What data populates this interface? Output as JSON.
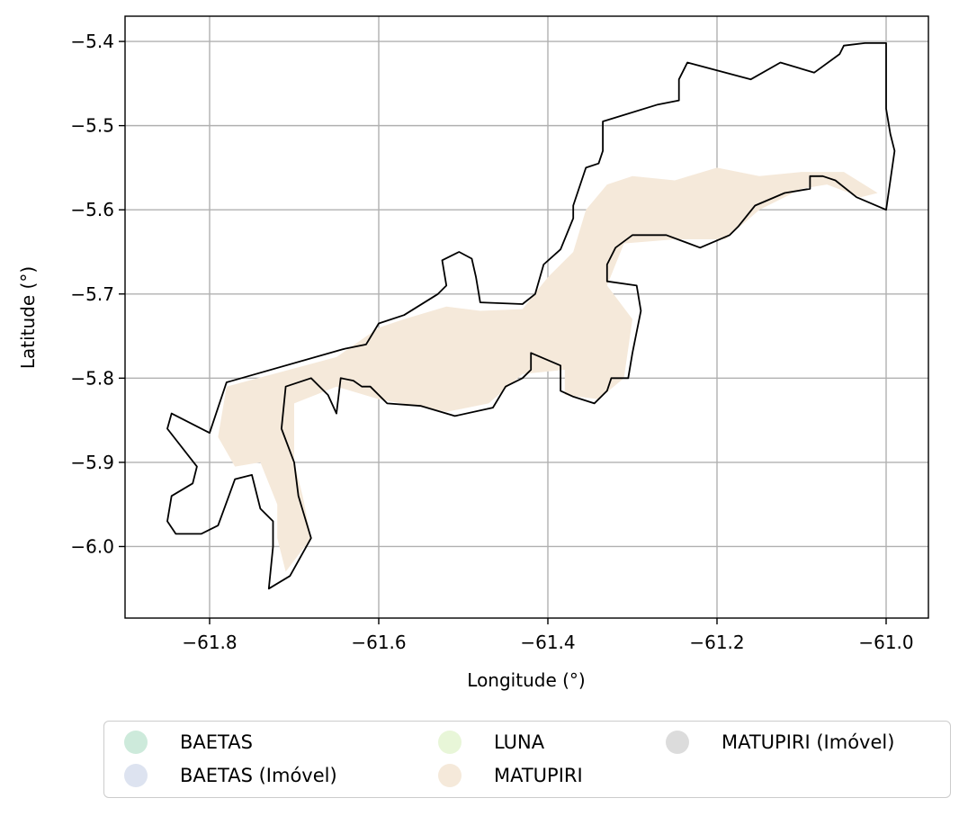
{
  "chart_data": {
    "type": "map",
    "xlabel": "Longitude (°)",
    "ylabel": "Latitude (°)",
    "xlim": [
      -61.9,
      -60.95
    ],
    "ylim": [
      -6.085,
      -5.37
    ],
    "xticks": [
      -61.8,
      -61.6,
      -61.4,
      -61.2,
      -61.0
    ],
    "yticks": [
      -5.4,
      -5.5,
      -5.6,
      -5.7,
      -5.8,
      -5.9,
      -6.0
    ],
    "xtick_labels": [
      "−61.8",
      "−61.6",
      "−61.4",
      "−61.2",
      "−61.0"
    ],
    "ytick_labels": [
      "−5.4",
      "−5.5",
      "−5.6",
      "−5.7",
      "−5.8",
      "−5.9",
      "−6.0"
    ],
    "grid": true,
    "legend_placement": "bottom-center",
    "legend": [
      {
        "label": "BAETAS",
        "color": "#cdeadb"
      },
      {
        "label": "BAETAS (Imóvel)",
        "color": "#dde3f0"
      },
      {
        "label": "LUNA",
        "color": "#e8f6d8"
      },
      {
        "label": "MATUPIRI",
        "color": "#f5e9da"
      },
      {
        "label": "MATUPIRI (Imóvel)",
        "color": "#dcdcdc"
      }
    ],
    "boundary_outline": [
      [
        -61.845,
        -5.842
      ],
      [
        -61.8,
        -5.865
      ],
      [
        -61.78,
        -5.805
      ],
      [
        -61.64,
        -5.765
      ],
      [
        -61.615,
        -5.76
      ],
      [
        -61.6,
        -5.735
      ],
      [
        -61.57,
        -5.725
      ],
      [
        -61.53,
        -5.7
      ],
      [
        -61.52,
        -5.69
      ],
      [
        -61.525,
        -5.66
      ],
      [
        -61.505,
        -5.65
      ],
      [
        -61.49,
        -5.658
      ],
      [
        -61.485,
        -5.68
      ],
      [
        -61.48,
        -5.71
      ],
      [
        -61.43,
        -5.712
      ],
      [
        -61.415,
        -5.7
      ],
      [
        -61.405,
        -5.665
      ],
      [
        -61.385,
        -5.647
      ],
      [
        -61.37,
        -5.61
      ],
      [
        -61.37,
        -5.595
      ],
      [
        -61.355,
        -5.55
      ],
      [
        -61.34,
        -5.545
      ],
      [
        -61.335,
        -5.53
      ],
      [
        -61.335,
        -5.495
      ],
      [
        -61.27,
        -5.475
      ],
      [
        -61.245,
        -5.47
      ],
      [
        -61.245,
        -5.445
      ],
      [
        -61.235,
        -5.425
      ],
      [
        -61.16,
        -5.445
      ],
      [
        -61.125,
        -5.425
      ],
      [
        -61.085,
        -5.437
      ],
      [
        -61.055,
        -5.415
      ],
      [
        -61.05,
        -5.405
      ],
      [
        -61.025,
        -5.402
      ],
      [
        -61.0,
        -5.402
      ],
      [
        -61.0,
        -5.48
      ],
      [
        -60.995,
        -5.51
      ],
      [
        -60.99,
        -5.53
      ],
      [
        -61.0,
        -5.6
      ],
      [
        -61.035,
        -5.585
      ],
      [
        -61.06,
        -5.565
      ],
      [
        -61.075,
        -5.56
      ],
      [
        -61.09,
        -5.56
      ],
      [
        -61.09,
        -5.575
      ],
      [
        -61.12,
        -5.58
      ],
      [
        -61.155,
        -5.595
      ],
      [
        -61.175,
        -5.62
      ],
      [
        -61.185,
        -5.63
      ],
      [
        -61.22,
        -5.645
      ],
      [
        -61.26,
        -5.63
      ],
      [
        -61.3,
        -5.63
      ],
      [
        -61.32,
        -5.645
      ],
      [
        -61.33,
        -5.665
      ],
      [
        -61.33,
        -5.685
      ],
      [
        -61.295,
        -5.69
      ],
      [
        -61.29,
        -5.72
      ],
      [
        -61.3,
        -5.77
      ],
      [
        -61.305,
        -5.8
      ],
      [
        -61.325,
        -5.8
      ],
      [
        -61.33,
        -5.815
      ],
      [
        -61.345,
        -5.83
      ],
      [
        -61.37,
        -5.822
      ],
      [
        -61.385,
        -5.815
      ],
      [
        -61.385,
        -5.785
      ],
      [
        -61.42,
        -5.77
      ],
      [
        -61.42,
        -5.79
      ],
      [
        -61.43,
        -5.8
      ],
      [
        -61.45,
        -5.81
      ],
      [
        -61.465,
        -5.835
      ],
      [
        -61.51,
        -5.845
      ],
      [
        -61.55,
        -5.833
      ],
      [
        -61.59,
        -5.83
      ],
      [
        -61.61,
        -5.81
      ],
      [
        -61.62,
        -5.81
      ],
      [
        -61.63,
        -5.803
      ],
      [
        -61.645,
        -5.8
      ],
      [
        -61.65,
        -5.842
      ],
      [
        -61.66,
        -5.82
      ],
      [
        -61.68,
        -5.8
      ],
      [
        -61.71,
        -5.81
      ],
      [
        -61.715,
        -5.86
      ],
      [
        -61.7,
        -5.9
      ],
      [
        -61.695,
        -5.94
      ],
      [
        -61.68,
        -5.99
      ],
      [
        -61.705,
        -6.035
      ],
      [
        -61.73,
        -6.05
      ],
      [
        -61.725,
        -6.0
      ],
      [
        -61.725,
        -5.97
      ],
      [
        -61.74,
        -5.955
      ],
      [
        -61.75,
        -5.915
      ],
      [
        -61.77,
        -5.92
      ],
      [
        -61.79,
        -5.975
      ],
      [
        -61.81,
        -5.985
      ],
      [
        -61.84,
        -5.985
      ],
      [
        -61.85,
        -5.97
      ],
      [
        -61.845,
        -5.94
      ],
      [
        -61.82,
        -5.925
      ],
      [
        -61.815,
        -5.905
      ],
      [
        -61.85,
        -5.86
      ],
      [
        -61.845,
        -5.842
      ]
    ],
    "area_patches": [
      {
        "name": "MATUPIRI",
        "polygon": [
          [
            -61.79,
            -5.87
          ],
          [
            -61.78,
            -5.81
          ],
          [
            -61.65,
            -5.775
          ],
          [
            -61.6,
            -5.74
          ],
          [
            -61.57,
            -5.73
          ],
          [
            -61.52,
            -5.715
          ],
          [
            -61.48,
            -5.72
          ],
          [
            -61.43,
            -5.718
          ],
          [
            -61.4,
            -5.68
          ],
          [
            -61.37,
            -5.65
          ],
          [
            -61.355,
            -5.6
          ],
          [
            -61.33,
            -5.57
          ],
          [
            -61.3,
            -5.56
          ],
          [
            -61.25,
            -5.565
          ],
          [
            -61.2,
            -5.55
          ],
          [
            -61.15,
            -5.56
          ],
          [
            -61.1,
            -5.555
          ],
          [
            -61.05,
            -5.555
          ],
          [
            -61.01,
            -5.58
          ],
          [
            -61.03,
            -5.585
          ],
          [
            -61.07,
            -5.57
          ],
          [
            -61.1,
            -5.575
          ],
          [
            -61.15,
            -5.6
          ],
          [
            -61.19,
            -5.635
          ],
          [
            -61.25,
            -5.635
          ],
          [
            -61.31,
            -5.64
          ],
          [
            -61.33,
            -5.69
          ],
          [
            -61.3,
            -5.73
          ],
          [
            -61.31,
            -5.8
          ],
          [
            -61.34,
            -5.825
          ],
          [
            -61.38,
            -5.82
          ],
          [
            -61.38,
            -5.79
          ],
          [
            -61.43,
            -5.795
          ],
          [
            -61.47,
            -5.83
          ],
          [
            -61.52,
            -5.84
          ],
          [
            -61.6,
            -5.825
          ],
          [
            -61.65,
            -5.81
          ],
          [
            -61.7,
            -5.83
          ],
          [
            -61.7,
            -5.9
          ],
          [
            -61.69,
            -5.94
          ],
          [
            -61.68,
            -5.99
          ],
          [
            -61.71,
            -6.03
          ],
          [
            -61.72,
            -5.99
          ],
          [
            -61.72,
            -5.95
          ],
          [
            -61.74,
            -5.9
          ],
          [
            -61.77,
            -5.905
          ],
          [
            -61.79,
            -5.87
          ]
        ]
      }
    ]
  }
}
